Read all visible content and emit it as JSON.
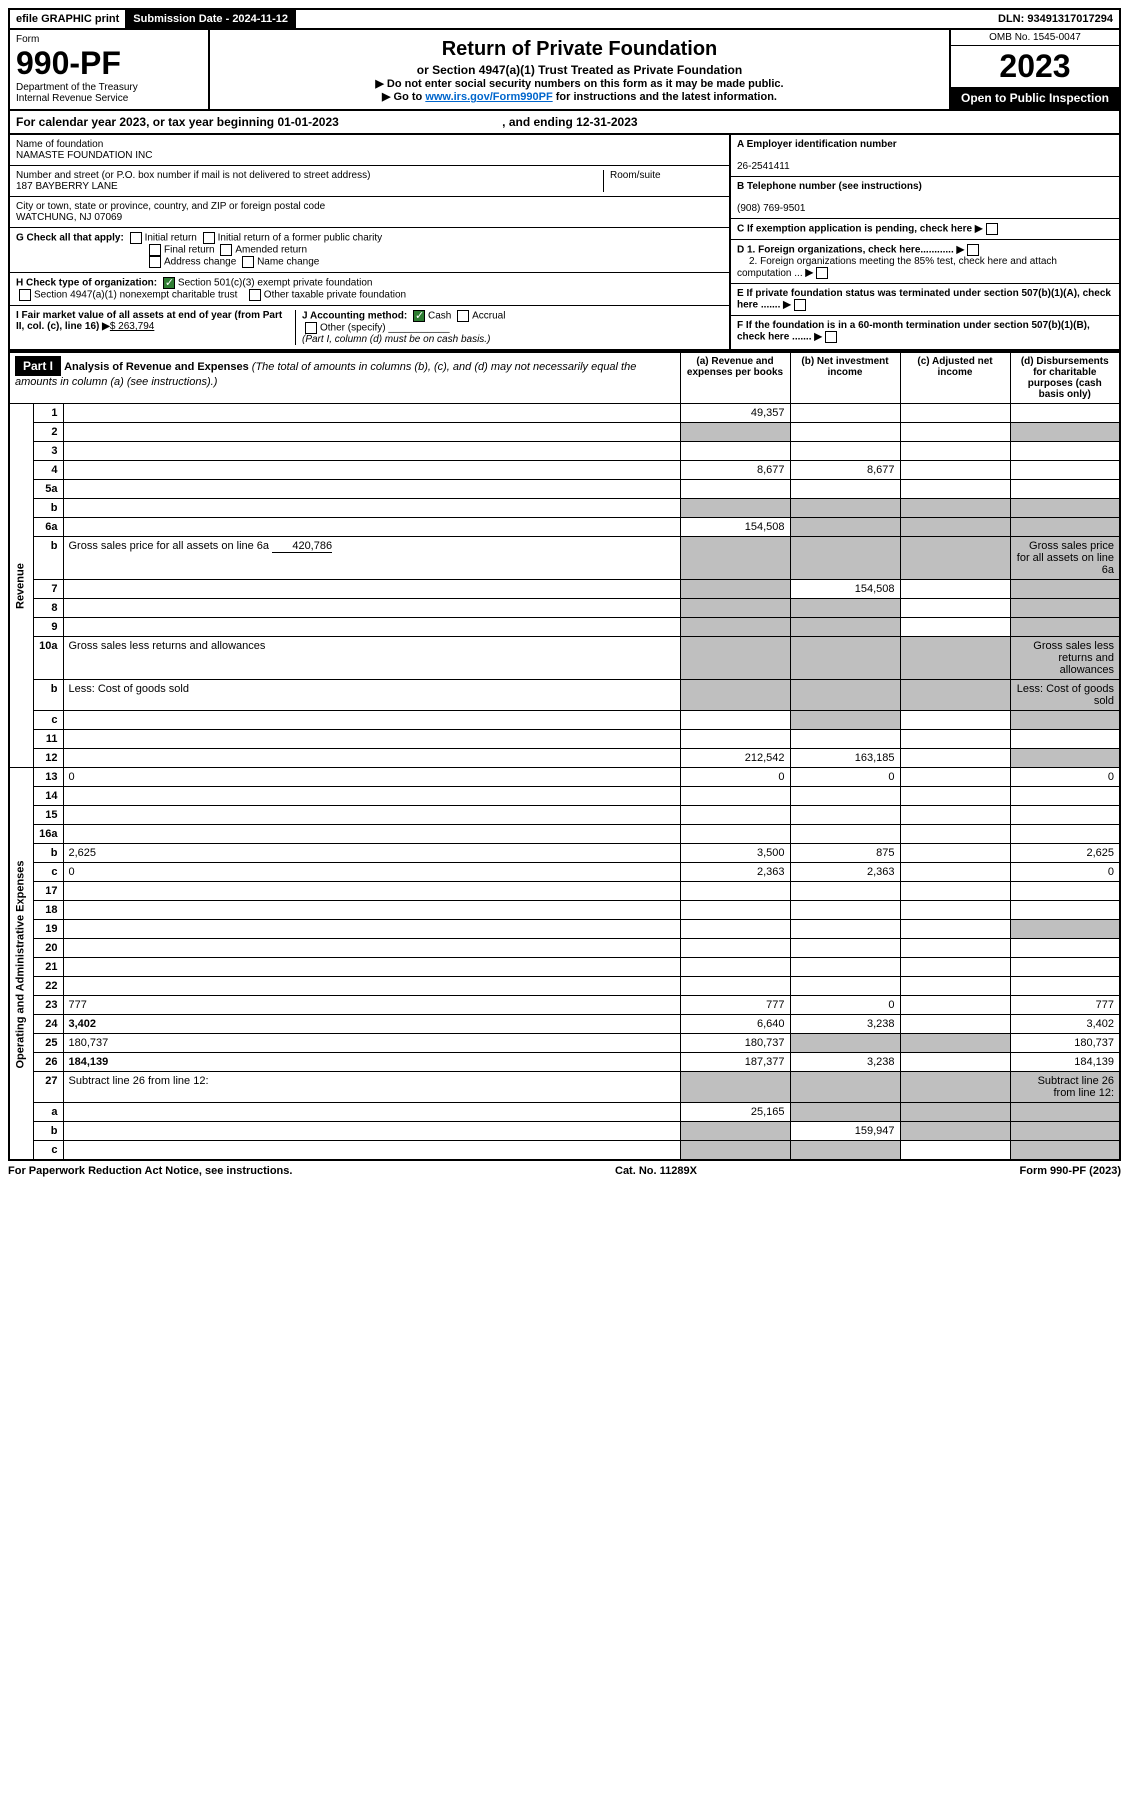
{
  "topbar": {
    "efile": "efile GRAPHIC print",
    "submission_label": "Submission Date - 2024-11-12",
    "dln_label": "DLN: 93491317017294"
  },
  "header": {
    "form_word": "Form",
    "form_number": "990-PF",
    "dept": "Department of the Treasury",
    "irs": "Internal Revenue Service",
    "title": "Return of Private Foundation",
    "subtitle": "or Section 4947(a)(1) Trust Treated as Private Foundation",
    "instr1": "▶ Do not enter social security numbers on this form as it may be made public.",
    "instr2_pre": "▶ Go to ",
    "instr2_link": "www.irs.gov/Form990PF",
    "instr2_post": " for instructions and the latest information.",
    "omb": "OMB No. 1545-0047",
    "year": "2023",
    "open": "Open to Public Inspection"
  },
  "calyear": {
    "text": "For calendar year 2023, or tax year beginning 01-01-2023",
    "ending": ", and ending 12-31-2023"
  },
  "info": {
    "name_label": "Name of foundation",
    "name": "NAMASTE FOUNDATION INC",
    "addr_label": "Number and street (or P.O. box number if mail is not delivered to street address)",
    "addr": "187 BAYBERRY LANE",
    "room_label": "Room/suite",
    "city_label": "City or town, state or province, country, and ZIP or foreign postal code",
    "city": "WATCHUNG, NJ  07069",
    "a_label": "A Employer identification number",
    "a_val": "26-2541411",
    "b_label": "B Telephone number (see instructions)",
    "b_val": "(908) 769-9501",
    "c_label": "C If exemption application is pending, check here",
    "d1_label": "D 1. Foreign organizations, check here............",
    "d2_label": "2. Foreign organizations meeting the 85% test, check here and attach computation ...",
    "e_label": "E If private foundation status was terminated under section 507(b)(1)(A), check here .......",
    "f_label": "F If the foundation is in a 60-month termination under section 507(b)(1)(B), check here .......",
    "g_label": "G Check all that apply:",
    "g_opts": [
      "Initial return",
      "Initial return of a former public charity",
      "Final return",
      "Amended return",
      "Address change",
      "Name change"
    ],
    "h_label": "H Check type of organization:",
    "h_opt1": "Section 501(c)(3) exempt private foundation",
    "h_opt2": "Section 4947(a)(1) nonexempt charitable trust",
    "h_opt3": "Other taxable private foundation",
    "i_label": "I Fair market value of all assets at end of year (from Part II, col. (c), line 16)",
    "i_val": "$  263,794",
    "j_label": "J Accounting method:",
    "j_cash": "Cash",
    "j_accrual": "Accrual",
    "j_other": "Other (specify)",
    "j_note": "(Part I, column (d) must be on cash basis.)"
  },
  "part1": {
    "label": "Part I",
    "title": "Analysis of Revenue and Expenses",
    "note": "(The total of amounts in columns (b), (c), and (d) may not necessarily equal the amounts in column (a) (see instructions).)",
    "col_a": "(a) Revenue and expenses per books",
    "col_b": "(b) Net investment income",
    "col_c": "(c) Adjusted net income",
    "col_d": "(d) Disbursements for charitable purposes (cash basis only)",
    "vert_rev": "Revenue",
    "vert_exp": "Operating and Administrative Expenses"
  },
  "lines": [
    {
      "n": "1",
      "d": "",
      "a": "49,357",
      "b": "",
      "c": ""
    },
    {
      "n": "2",
      "d": "",
      "a": "",
      "b": "",
      "c": "",
      "shade_ad": true
    },
    {
      "n": "3",
      "d": "",
      "a": "",
      "b": "",
      "c": ""
    },
    {
      "n": "4",
      "d": "",
      "a": "8,677",
      "b": "8,677",
      "c": ""
    },
    {
      "n": "5a",
      "d": "",
      "a": "",
      "b": "",
      "c": ""
    },
    {
      "n": "b",
      "d": "",
      "a": "",
      "b": "",
      "c": "",
      "shade_all": true,
      "inline": true
    },
    {
      "n": "6a",
      "d": "",
      "a": "154,508",
      "b": "",
      "c": "",
      "shade_bcd": true
    },
    {
      "n": "b",
      "d": "Gross sales price for all assets on line 6a",
      "inline_val": "420,786",
      "shade_all": true
    },
    {
      "n": "7",
      "d": "",
      "a": "",
      "b": "154,508",
      "c": "",
      "shade_ad": true
    },
    {
      "n": "8",
      "d": "",
      "a": "",
      "b": "",
      "c": "",
      "shade_abd": true
    },
    {
      "n": "9",
      "d": "",
      "a": "",
      "b": "",
      "c": "",
      "shade_abd": true
    },
    {
      "n": "10a",
      "d": "Gross sales less returns and allowances",
      "shade_all": true,
      "inline": true
    },
    {
      "n": "b",
      "d": "Less: Cost of goods sold",
      "shade_all": true,
      "inline": true
    },
    {
      "n": "c",
      "d": "",
      "a": "",
      "b": "",
      "c": "",
      "shade_bd": true
    },
    {
      "n": "11",
      "d": "",
      "a": "",
      "b": "",
      "c": ""
    },
    {
      "n": "12",
      "d": "",
      "a": "212,542",
      "b": "163,185",
      "c": "",
      "bold": true,
      "shade_d": true
    }
  ],
  "exp_lines": [
    {
      "n": "13",
      "d": "0",
      "a": "0",
      "b": "0",
      "c": ""
    },
    {
      "n": "14",
      "d": "",
      "a": "",
      "b": "",
      "c": ""
    },
    {
      "n": "15",
      "d": "",
      "a": "",
      "b": "",
      "c": ""
    },
    {
      "n": "16a",
      "d": "",
      "a": "",
      "b": "",
      "c": ""
    },
    {
      "n": "b",
      "d": "2,625",
      "a": "3,500",
      "b": "875",
      "c": ""
    },
    {
      "n": "c",
      "d": "0",
      "a": "2,363",
      "b": "2,363",
      "c": ""
    },
    {
      "n": "17",
      "d": "",
      "a": "",
      "b": "",
      "c": ""
    },
    {
      "n": "18",
      "d": "",
      "a": "",
      "b": "",
      "c": ""
    },
    {
      "n": "19",
      "d": "",
      "a": "",
      "b": "",
      "c": "",
      "shade_d": true
    },
    {
      "n": "20",
      "d": "",
      "a": "",
      "b": "",
      "c": ""
    },
    {
      "n": "21",
      "d": "",
      "a": "",
      "b": "",
      "c": ""
    },
    {
      "n": "22",
      "d": "",
      "a": "",
      "b": "",
      "c": ""
    },
    {
      "n": "23",
      "d": "777",
      "a": "777",
      "b": "0",
      "c": ""
    },
    {
      "n": "24",
      "d": "3,402",
      "a": "6,640",
      "b": "3,238",
      "c": "",
      "bold": true
    },
    {
      "n": "25",
      "d": "180,737",
      "a": "180,737",
      "b": "",
      "c": "",
      "shade_bc": true
    },
    {
      "n": "26",
      "d": "184,139",
      "a": "187,377",
      "b": "3,238",
      "c": "",
      "bold": true
    },
    {
      "n": "27",
      "d": "Subtract line 26 from line 12:",
      "shade_all": true
    },
    {
      "n": "a",
      "d": "",
      "a": "25,165",
      "b": "",
      "c": "",
      "bold": true,
      "shade_bcd": true
    },
    {
      "n": "b",
      "d": "",
      "a": "",
      "b": "159,947",
      "c": "",
      "bold": true,
      "shade_acd": true
    },
    {
      "n": "c",
      "d": "",
      "a": "",
      "b": "",
      "c": "",
      "bold": true,
      "shade_abd": true
    }
  ],
  "footer": {
    "left": "For Paperwork Reduction Act Notice, see instructions.",
    "mid": "Cat. No. 11289X",
    "right": "Form 990-PF (2023)"
  }
}
